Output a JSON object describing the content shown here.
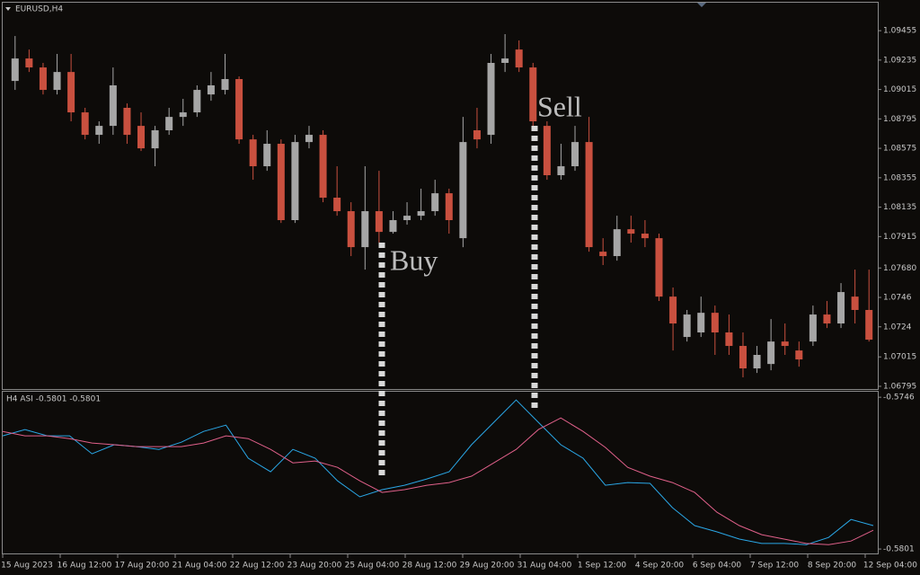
{
  "chart_data": [
    {
      "type": "candlestick",
      "title": "EURUSD,H4",
      "open": [
        1.09079,
        1.09247,
        1.0918,
        1.09012,
        1.09146,
        1.08844,
        1.08676,
        1.08743,
        1.08878,
        1.08743,
        1.08575,
        1.0871,
        1.0881,
        1.08844,
        1.08978,
        1.09012,
        1.09093,
        1.08642,
        1.08441,
        1.08609,
        1.08038,
        1.08622,
        1.08676,
        1.08206,
        1.08105,
        1.07836,
        1.08105,
        1.0795,
        1.08038,
        1.08071,
        1.08105,
        1.08239,
        1.07903,
        1.0871,
        1.08676,
        1.09214,
        1.09314,
        1.0918,
        1.08743,
        1.08374,
        1.08441,
        1.08622,
        1.07802,
        1.07769,
        1.0797,
        1.07937,
        1.07903,
        1.07466,
        1.07164,
        1.07198,
        1.07345,
        1.07198,
        1.07097,
        1.06929,
        1.06962,
        1.0713,
        1.07063,
        1.0713,
        1.07332,
        1.07265,
        1.07466,
        1.07366
      ],
      "high": [
        1.09415,
        1.09314,
        1.09214,
        1.09281,
        1.09281,
        1.08878,
        1.08777,
        1.0918,
        1.08911,
        1.08844,
        1.08743,
        1.08878,
        1.08945,
        1.09046,
        1.09146,
        1.09281,
        1.09113,
        1.08676,
        1.0871,
        1.08642,
        1.08676,
        1.08743,
        1.0871,
        1.08441,
        1.08172,
        1.08441,
        1.08407,
        1.08105,
        1.08172,
        1.08273,
        1.0834,
        1.08273,
        1.0881,
        1.08878,
        1.09281,
        1.09429,
        1.09382,
        1.09214,
        1.08777,
        1.08609,
        1.08743,
        1.0881,
        1.07903,
        1.08071,
        1.08071,
        1.08038,
        1.07937,
        1.07534,
        1.07366,
        1.07466,
        1.07399,
        1.07332,
        1.07198,
        1.07097,
        1.07298,
        1.07265,
        1.0713,
        1.07399,
        1.07433,
        1.07567,
        1.07668,
        1.07668
      ],
      "low": [
        1.09012,
        1.09146,
        1.08978,
        1.08978,
        1.08777,
        1.08642,
        1.08609,
        1.08676,
        1.08609,
        1.08555,
        1.08441,
        1.08676,
        1.08743,
        1.0881,
        1.08931,
        1.08978,
        1.08609,
        1.0834,
        1.08407,
        1.08017,
        1.08017,
        1.08575,
        1.08172,
        1.08071,
        1.07769,
        1.07668,
        1.0787,
        1.07937,
        1.08004,
        1.08038,
        1.08071,
        1.07937,
        1.07836,
        1.08575,
        1.08609,
        1.09146,
        1.09146,
        1.08743,
        1.0834,
        1.0834,
        1.08407,
        1.07802,
        1.07702,
        1.07735,
        1.0787,
        1.07836,
        1.07433,
        1.07063,
        1.0713,
        1.07164,
        1.0703,
        1.0703,
        1.06862,
        1.06895,
        1.06915,
        1.0703,
        1.06942,
        1.07097,
        1.07231,
        1.07231,
        1.07265,
        1.0713
      ],
      "close": [
        1.09247,
        1.0918,
        1.09012,
        1.09146,
        1.08844,
        1.08676,
        1.08743,
        1.09046,
        1.08676,
        1.08575,
        1.0871,
        1.0881,
        1.08844,
        1.09012,
        1.09046,
        1.09093,
        1.08642,
        1.08441,
        1.08609,
        1.08038,
        1.08622,
        1.08676,
        1.08206,
        1.08105,
        1.07836,
        1.08105,
        1.0795,
        1.08038,
        1.08071,
        1.08105,
        1.08239,
        1.08038,
        1.08622,
        1.08642,
        1.09214,
        1.09247,
        1.0918,
        1.08777,
        1.08374,
        1.08441,
        1.08622,
        1.07836,
        1.07769,
        1.0797,
        1.07937,
        1.07903,
        1.07466,
        1.07265,
        1.07332,
        1.07345,
        1.07198,
        1.07097,
        1.06929,
        1.0703,
        1.0713,
        1.07097,
        1.06996,
        1.07332,
        1.07265,
        1.075,
        1.07366,
        1.07144
      ],
      "up_color": "#a6a6a6",
      "down_color": "#c9503f",
      "ylim": [
        1.09671,
        1.06768
      ],
      "yticks": [
        1.09455,
        1.09235,
        1.09015,
        1.08795,
        1.08575,
        1.08355,
        1.08135,
        1.07915,
        {
          "value": 1.0768,
          "label": "1.07680"
        },
        1.0746,
        1.0724,
        1.07015,
        1.06795
      ],
      "annotations": [
        "Buy",
        "Sell"
      ],
      "x_labels": [
        "15 Aug 2023",
        "16 Aug 12:00",
        "17 Aug 20:00",
        "21 Aug 04:00",
        "22 Aug 12:00",
        "23 Aug 20:00",
        "25 Aug 04:00",
        "28 Aug 12:00",
        "29 Aug 20:00",
        "31 Aug 04:00",
        "1 Sep 12:00",
        "4 Sep 20:00",
        "6 Sep 04:00",
        "7 Sep 12:00",
        "8 Sep 20:00",
        "12 Sep 04:00"
      ]
    },
    {
      "type": "line",
      "title": "H4  ASI  -0.5801 -0.5801",
      "series": [
        {
          "color": "#2aa7e6",
          "values": [
            -0.576,
            -0.57577,
            -0.576,
            -0.576,
            -0.57665,
            -0.57632,
            -0.57639,
            -0.57649,
            -0.57623,
            -0.57584,
            -0.57561,
            -0.57681,
            -0.5773,
            -0.57649,
            -0.57681,
            -0.57763,
            -0.57821,
            -0.57795,
            -0.57779,
            -0.57756,
            -0.5773,
            -0.57632,
            -0.57551,
            -0.5747,
            -0.57551,
            -0.57632,
            -0.57681,
            -0.57779,
            -0.57769,
            -0.57772,
            -0.5786,
            -0.57925,
            -0.57948,
            -0.57974,
            -0.5799,
            -0.5799,
            -0.57994,
            -0.57968,
            -0.57903,
            -0.57925
          ]
        },
        {
          "color": "#e0608a",
          "values": [
            -0.57584,
            -0.576,
            -0.576,
            -0.5761,
            -0.57626,
            -0.57632,
            -0.57639,
            -0.57639,
            -0.57639,
            -0.57626,
            -0.576,
            -0.5761,
            -0.57649,
            -0.57698,
            -0.57691,
            -0.57714,
            -0.57763,
            -0.57805,
            -0.57795,
            -0.57779,
            -0.57769,
            -0.57746,
            -0.57698,
            -0.57649,
            -0.57577,
            -0.57535,
            -0.57584,
            -0.57642,
            -0.57714,
            -0.57746,
            -0.57769,
            -0.57805,
            -0.57877,
            -0.57925,
            -0.57958,
            -0.57974,
            -0.5799,
            -0.57994,
            -0.57981,
            -0.57942
          ]
        }
      ],
      "ylim": [
        -0.5744,
        -0.58026
      ],
      "yticks": [
        -0.5746,
        -0.5801
      ]
    }
  ]
}
